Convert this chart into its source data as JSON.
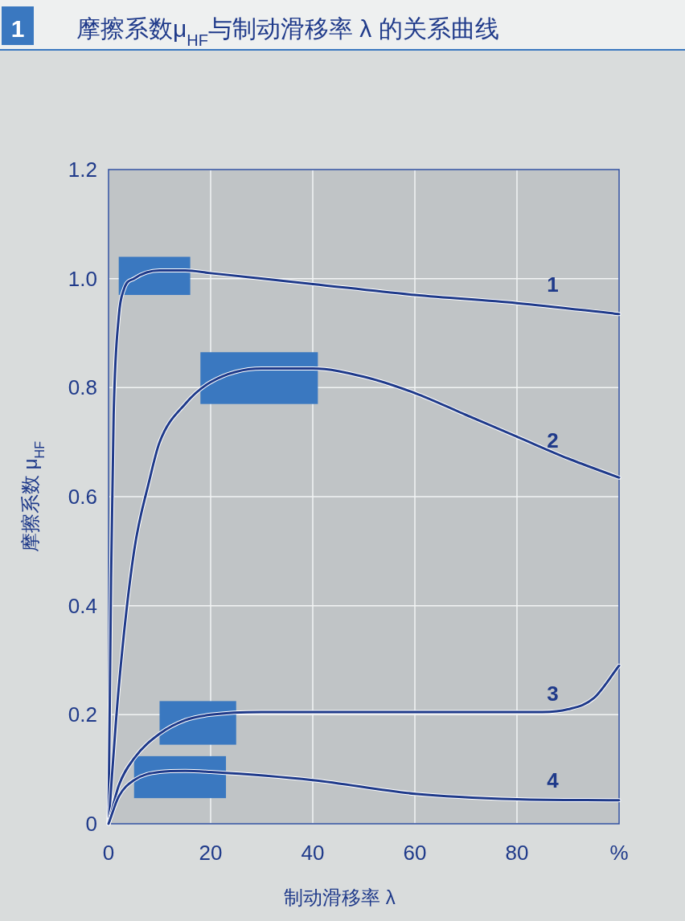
{
  "chart_data": {
    "type": "line",
    "title": "摩擦系数μ$_{HF}$与制动滑移率 λ 的关系曲线",
    "annotations": [
      "1"
    ],
    "xlabel": "制动滑移率  λ",
    "ylabel": "摩擦系数  μ$_{HF}$",
    "xlim": [
      0,
      100
    ],
    "ylim": [
      0,
      1.2
    ],
    "xticks": [
      0,
      20,
      40,
      60,
      80,
      {
        "value": 100,
        "label": "%"
      }
    ],
    "yticks": [
      0,
      0.2,
      0.4,
      0.6,
      0.8,
      {
        "value": 1,
        "label": "1.0"
      },
      1.2
    ],
    "grid": true,
    "line_style": "solid",
    "series": [
      {
        "name": "1",
        "color": "#1f3a8a",
        "x": [
          0,
          0.5,
          1,
          2,
          3,
          5,
          10,
          15,
          20,
          40,
          60,
          80,
          100
        ],
        "values": [
          0,
          0.45,
          0.75,
          0.93,
          0.98,
          1.0,
          1.015,
          1.015,
          1.01,
          0.99,
          0.97,
          0.955,
          0.935
        ]
      },
      {
        "name": "2",
        "color": "#1f3a8a",
        "x": [
          0,
          2,
          5,
          8,
          10,
          15,
          20,
          30,
          40,
          50,
          60,
          70,
          80,
          90,
          100
        ],
        "values": [
          0,
          0.25,
          0.5,
          0.63,
          0.7,
          0.77,
          0.81,
          0.835,
          0.835,
          0.82,
          0.79,
          0.75,
          0.71,
          0.67,
          0.635
        ]
      },
      {
        "name": "3",
        "color": "#1f3a8a",
        "x": [
          0,
          2,
          5,
          10,
          15,
          20,
          30,
          60,
          85,
          90,
          95,
          100
        ],
        "values": [
          0,
          0.07,
          0.12,
          0.165,
          0.19,
          0.2,
          0.205,
          0.205,
          0.205,
          0.21,
          0.23,
          0.29
        ]
      },
      {
        "name": "4",
        "color": "#1f3a8a",
        "x": [
          0,
          2,
          5,
          10,
          15,
          20,
          40,
          60,
          80,
          100
        ],
        "values": [
          0,
          0.05,
          0.08,
          0.095,
          0.097,
          0.095,
          0.08,
          0.055,
          0.045,
          0.043
        ]
      }
    ]
  }
}
